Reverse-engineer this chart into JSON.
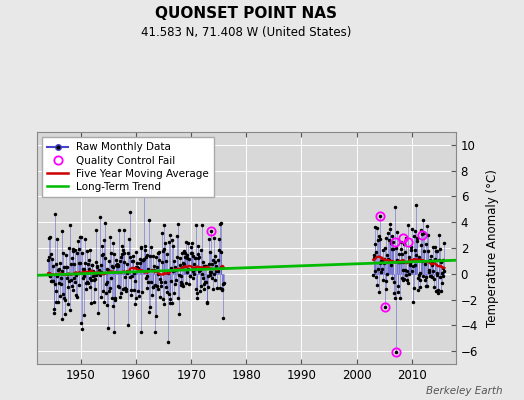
{
  "title": "QUONSET POINT NAS",
  "subtitle": "41.583 N, 71.408 W (United States)",
  "ylabel": "Temperature Anomaly (°C)",
  "credit": "Berkeley Earth",
  "ylim": [
    -7,
    11
  ],
  "yticks": [
    -6,
    -4,
    -2,
    0,
    2,
    4,
    6,
    8,
    10
  ],
  "xlim": [
    1942,
    2018
  ],
  "xticks": [
    1950,
    1960,
    1970,
    1980,
    1990,
    2000,
    2010
  ],
  "bg_color": "#e8e8e8",
  "plot_bg_color": "#d8d8d8",
  "raw_color": "#4444cc",
  "ma_color": "#cc0000",
  "trend_color": "#00bb00",
  "qc_color": "#ff00ff",
  "seed": 42,
  "period1_start": 1944,
  "period1_end": 1975,
  "period2_start": 2003,
  "period2_end": 2015,
  "trend_x": [
    1942,
    2018
  ],
  "trend_y": [
    -0.12,
    1.05
  ],
  "qc_times": [
    1973.6,
    2004.3,
    2005.1,
    2007.0,
    2007.17,
    2008.4,
    2009.25,
    2011.9
  ],
  "qc_vals": [
    3.3,
    4.5,
    -2.6,
    2.5,
    -6.1,
    2.8,
    2.5,
    3.0
  ]
}
